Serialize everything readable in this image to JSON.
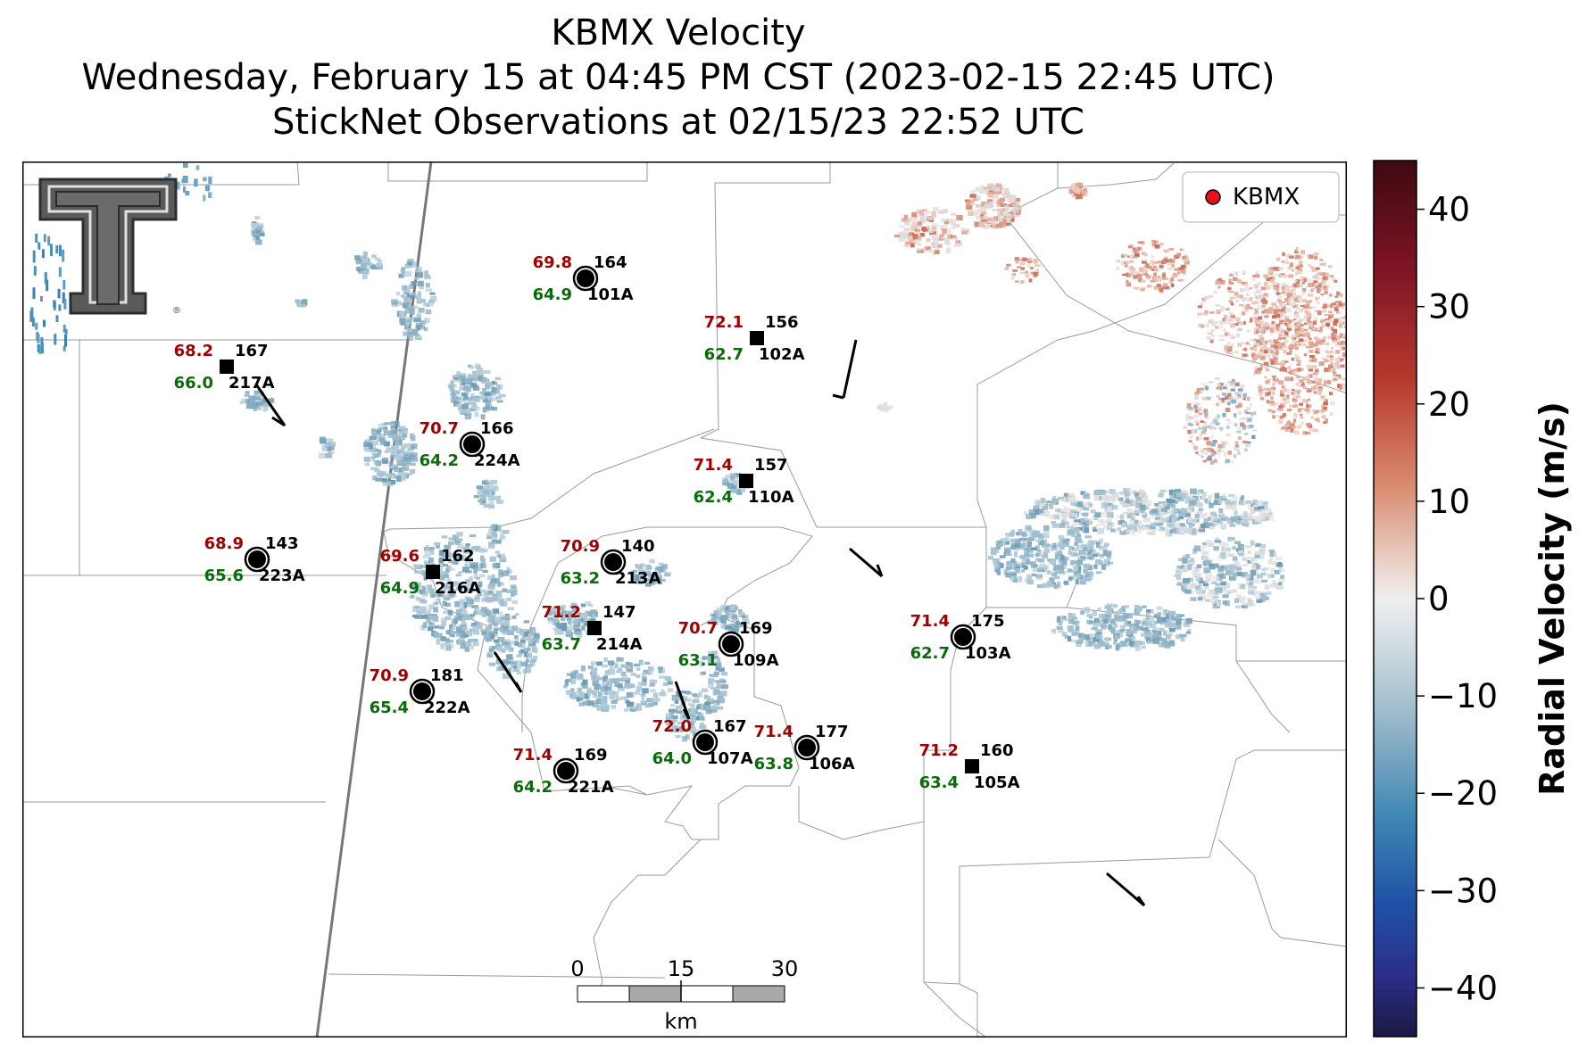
{
  "title": {
    "line1": "KBMX Velocity",
    "line2": "Wednesday, February 15 at 04:45 PM CST (2023-02-15 22:45 UTC)",
    "line3": "StickNet Observations at 02/15/23 22:52 UTC"
  },
  "legend": {
    "label": "KBMX",
    "marker_color": "#e8101a"
  },
  "logo": {
    "name": "Texas Tech Double T",
    "mark": "®"
  },
  "colorbar": {
    "label": "Radial Velocity (m/s)",
    "range": [
      -45,
      45
    ],
    "ticks": [
      "40",
      "30",
      "20",
      "10",
      "0",
      "−10",
      "−20",
      "−30",
      "−40"
    ]
  },
  "scale_bar": {
    "ticks": [
      "0",
      "15",
      "30"
    ],
    "unit": "km"
  },
  "colors": {
    "temp": "#a00000",
    "dew": "#0a6b0a",
    "station": "#000000"
  },
  "stations": [
    {
      "id": "101A",
      "temp": "69.8",
      "dew": "64.9",
      "pressure": "164",
      "marker": "circle"
    },
    {
      "id": "217A",
      "temp": "68.2",
      "dew": "66.0",
      "pressure": "167",
      "marker": "square"
    },
    {
      "id": "102A",
      "temp": "72.1",
      "dew": "62.7",
      "pressure": "156",
      "marker": "square"
    },
    {
      "id": "224A",
      "temp": "70.7",
      "dew": "64.2",
      "pressure": "166",
      "marker": "circle"
    },
    {
      "id": "110A",
      "temp": "71.4",
      "dew": "62.4",
      "pressure": "157",
      "marker": "square"
    },
    {
      "id": "223A",
      "temp": "68.9",
      "dew": "65.6",
      "pressure": "143",
      "marker": "circle"
    },
    {
      "id": "216A",
      "temp": "69.6",
      "dew": "64.9",
      "pressure": "162",
      "marker": "square"
    },
    {
      "id": "213A",
      "temp": "70.9",
      "dew": "63.2",
      "pressure": "140",
      "marker": "circle"
    },
    {
      "id": "214A",
      "temp": "71.2",
      "dew": "63.7",
      "pressure": "147",
      "marker": "square"
    },
    {
      "id": "109A",
      "temp": "70.7",
      "dew": "63.1",
      "pressure": "169",
      "marker": "circle"
    },
    {
      "id": "103A",
      "temp": "71.4",
      "dew": "62.7",
      "pressure": "175",
      "marker": "circle"
    },
    {
      "id": "222A",
      "temp": "70.9",
      "dew": "65.4",
      "pressure": "181",
      "marker": "circle"
    },
    {
      "id": "107A",
      "temp": "72.0",
      "dew": "64.0",
      "pressure": "167",
      "marker": "circle"
    },
    {
      "id": "106A",
      "temp": "71.4",
      "dew": "63.8",
      "pressure": "177",
      "marker": "circle"
    },
    {
      "id": "221A",
      "temp": "71.4",
      "dew": "64.2",
      "pressure": "169",
      "marker": "circle"
    },
    {
      "id": "105A",
      "temp": "71.2",
      "dew": "63.4",
      "pressure": "160",
      "marker": "square"
    }
  ]
}
